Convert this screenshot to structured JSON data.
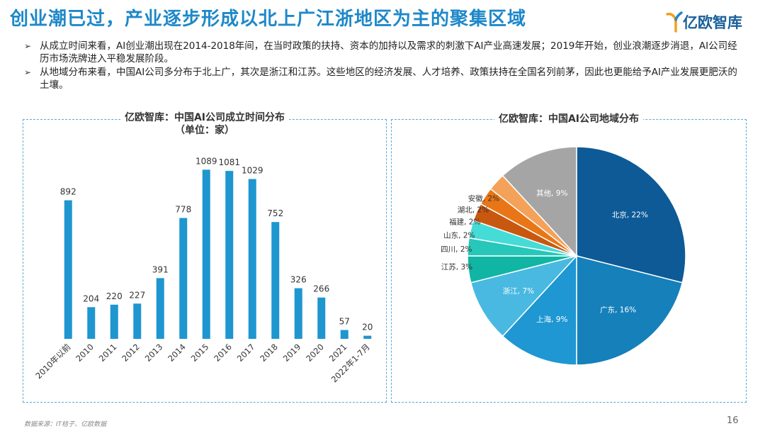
{
  "header": {
    "title": "创业潮已过，产业逐步形成以北上广江浙地区为主的聚集区域",
    "logo_text": "亿欧智库"
  },
  "bullets": [
    "从成立时间来看，AI创业潮出现在2014-2018年间，在当时政策的扶持、资本的加持以及需求的刺激下AI产业高速发展；2019年开始，创业浪潮逐步消退，AI公司经历市场洗牌进入平稳发展阶段。",
    "从地域分布来看，中国AI公司多分布于北上广，其次是浙江和江苏。这些地区的经济发展、人才培养、政策扶持在全国名列前茅，因此也更能给予AI产业发展更肥沃的土壤。"
  ],
  "bullet_marker": "➢",
  "chart_data": [
    {
      "type": "bar",
      "title": "亿欧智库：中国AI公司成立时间分布",
      "subtitle": "（单位：家）",
      "categories": [
        "2010年以前",
        "2010",
        "2011",
        "2012",
        "2013",
        "2014",
        "2015",
        "2016",
        "2017",
        "2018",
        "2019",
        "2020",
        "2021",
        "2022年1-7月"
      ],
      "values": [
        892,
        204,
        220,
        227,
        391,
        778,
        1089,
        1081,
        1029,
        752,
        326,
        266,
        57,
        20
      ],
      "ylim": [
        0,
        1150
      ],
      "color": "#1e96d0",
      "grid": false
    },
    {
      "type": "pie",
      "title": "亿欧智库：中国AI公司地域分布",
      "slices": [
        {
          "label": "北京",
          "value": 22,
          "text": "北京, 22%",
          "color": "#0d5a96"
        },
        {
          "label": "广东",
          "value": 16,
          "text": "广东, 16%",
          "color": "#1580ba"
        },
        {
          "label": "上海",
          "value": 9,
          "text": "上海, 9%",
          "color": "#1e97d3"
        },
        {
          "label": "浙江",
          "value": 7,
          "text": "浙江, 7%",
          "color": "#49b9e1"
        },
        {
          "label": "江苏",
          "value": 3,
          "text": "江苏, 3%",
          "color": "#10b5a4"
        },
        {
          "label": "四川",
          "value": 2,
          "text": "四川, 2%",
          "color": "#27c7b9"
        },
        {
          "label": "山东",
          "value": 2,
          "text": "山东, 2%",
          "color": "#45dbd7"
        },
        {
          "label": "福建",
          "value": 2,
          "text": "福建, 2%",
          "color": "#c85810"
        },
        {
          "label": "湖北",
          "value": 2,
          "text": "湖北, 2%",
          "color": "#e87616"
        },
        {
          "label": "安徽",
          "value": 2,
          "text": "安徽, 2%",
          "color": "#f4a25a"
        },
        {
          "label": "其他",
          "value": 9,
          "text": "其他, 9%",
          "color": "#a5a5a5"
        }
      ]
    }
  ],
  "footer": {
    "source": "数据来源：IT桔子、亿欧数据",
    "page": "16"
  }
}
